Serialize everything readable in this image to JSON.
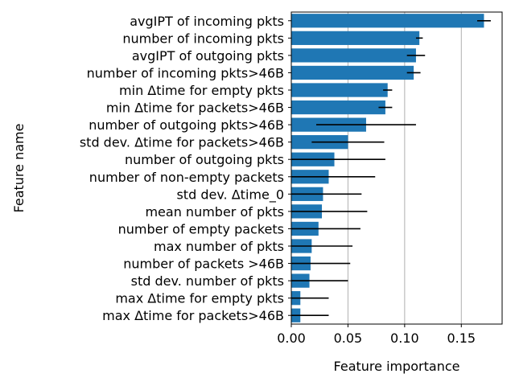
{
  "chart_data": {
    "type": "bar",
    "orientation": "horizontal",
    "title": "",
    "xlabel": "Feature importance",
    "ylabel": "Feature name",
    "xlim": [
      0.0,
      0.186
    ],
    "xticks": [
      0.0,
      0.05,
      0.1,
      0.15
    ],
    "xtick_labels": [
      "0.00",
      "0.05",
      "0.10",
      "0.15"
    ],
    "grid": "x",
    "legend": "none",
    "bar_color": "#1f77b4",
    "errorbar_color": "#000000",
    "categories": [
      "avgIPT of incoming pkts",
      "number of incoming pkts",
      "avgIPT of outgoing pkts",
      "number of incoming pkts>46B",
      "min Δtime for empty pkts",
      "min Δtime for packets>46B",
      "number of outgoing pkts>46B",
      "std dev. Δtime for packets>46B",
      "number of outgoing pkts",
      "number of non-empty packets",
      "std dev. Δtime_0",
      "mean number of pkts",
      "number of empty packets",
      "max number of pkts",
      "number of packets >46B",
      "std dev. number of pkts",
      "max Δtime for empty pkts",
      "max Δtime for packets>46B"
    ],
    "values": [
      0.17,
      0.113,
      0.11,
      0.108,
      0.085,
      0.083,
      0.066,
      0.05,
      0.038,
      0.033,
      0.028,
      0.027,
      0.024,
      0.018,
      0.017,
      0.016,
      0.008,
      0.008
    ],
    "errors": [
      0.006,
      0.003,
      0.008,
      0.006,
      0.004,
      0.006,
      0.044,
      0.032,
      0.045,
      0.041,
      0.034,
      0.04,
      0.037,
      0.036,
      0.035,
      0.034,
      0.025,
      0.025
    ]
  }
}
